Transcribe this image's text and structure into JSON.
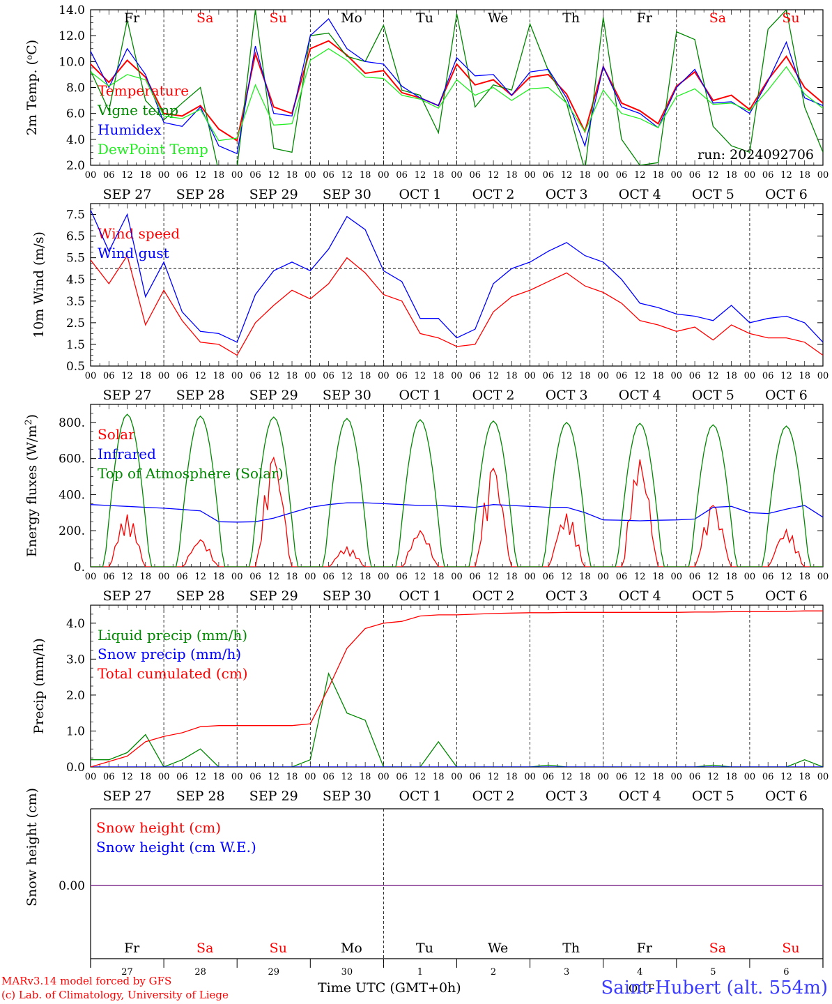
{
  "footer": {
    "model_line": "MARv3.14 model forced by GFS",
    "lab_line": "(c) Lab. of Climatology, University of Liege",
    "time_axis_label": "Time UTC (GMT+0h)",
    "station": "Saint-Hubert (alt. 554m)",
    "month_label": "OCT"
  },
  "colors": {
    "red": "#ff0000",
    "green": "#008800",
    "blue": "#0000ff",
    "lightgreen": "#22ee22",
    "weekend": "#ff0000",
    "weekday": "#000000",
    "snow_line": "#7b2a8a"
  },
  "hour_ticks": [
    "00",
    "06",
    "12",
    "18"
  ],
  "dates": [
    "SEP 27",
    "SEP 28",
    "SEP 29",
    "SEP 30",
    "OCT  1",
    "OCT  2",
    "OCT  3",
    "OCT  4",
    "OCT  5",
    "OCT  6"
  ],
  "days": [
    {
      "abbr": "Fr",
      "num": "27",
      "weekend": false
    },
    {
      "abbr": "Sa",
      "num": "28",
      "weekend": true
    },
    {
      "abbr": "Su",
      "num": "29",
      "weekend": true
    },
    {
      "abbr": "Mo",
      "num": "30",
      "weekend": false
    },
    {
      "abbr": "Tu",
      "num": "1",
      "weekend": false
    },
    {
      "abbr": "We",
      "num": "2",
      "weekend": false
    },
    {
      "abbr": "Th",
      "num": "3",
      "weekend": false
    },
    {
      "abbr": "Fr",
      "num": "4",
      "weekend": false
    },
    {
      "abbr": "Sa",
      "num": "5",
      "weekend": true
    },
    {
      "abbr": "Su",
      "num": "6",
      "weekend": true
    }
  ],
  "chart_data": [
    {
      "type": "line",
      "ylabel": "2m Temp. (°C)",
      "ylim": [
        2.0,
        14.0
      ],
      "yticks": [
        "2.0",
        "4.0",
        "6.0",
        "8.0",
        "10.0",
        "12.0",
        "14.0"
      ],
      "annotation": "run: 2024092706",
      "x_hours": [
        0,
        6,
        12,
        18,
        24,
        30,
        36,
        42,
        48,
        54,
        60,
        66,
        72,
        78,
        84,
        90,
        96,
        102,
        108,
        114,
        120,
        126,
        132,
        138,
        144,
        150,
        156,
        162,
        168,
        174,
        180,
        186,
        192,
        198,
        204,
        210,
        216,
        222,
        228,
        234,
        240
      ],
      "series": [
        {
          "name": "Temperature",
          "color": "red",
          "values": [
            9.8,
            8.4,
            10.1,
            8.8,
            6.0,
            5.8,
            6.6,
            4.8,
            3.9,
            10.6,
            6.5,
            6.0,
            11.0,
            11.6,
            10.5,
            9.1,
            9.3,
            7.6,
            7.2,
            6.6,
            9.8,
            8.2,
            8.6,
            7.4,
            8.8,
            9.0,
            7.5,
            4.6,
            9.6,
            6.8,
            6.2,
            5.2,
            8.1,
            9.2,
            7.0,
            7.4,
            6.3,
            8.6,
            10.4,
            8.0,
            6.8
          ]
        },
        {
          "name": "Vigne temp",
          "color": "green",
          "values": [
            9.3,
            6.2,
            13.2,
            7.0,
            5.5,
            6.8,
            8.0,
            1.5,
            1.8,
            14.0,
            3.3,
            3.0,
            12.0,
            12.2,
            10.4,
            10.0,
            12.8,
            7.8,
            7.4,
            4.5,
            13.7,
            6.5,
            8.2,
            7.8,
            12.9,
            9.3,
            6.8,
            1.6,
            13.4,
            4.0,
            2.0,
            2.2,
            12.3,
            11.7,
            5.0,
            3.5,
            3.0,
            12.5,
            14.0,
            6.5,
            3.0
          ]
        },
        {
          "name": "Humidex",
          "color": "blue",
          "values": [
            10.8,
            8.0,
            11.0,
            9.0,
            5.3,
            5.0,
            6.5,
            3.5,
            2.9,
            11.2,
            6.0,
            5.8,
            12.0,
            13.3,
            11.0,
            10.0,
            9.8,
            8.1,
            7.2,
            6.6,
            10.3,
            8.9,
            9.0,
            7.4,
            9.2,
            9.4,
            7.2,
            3.5,
            9.6,
            6.5,
            6.0,
            4.9,
            8.0,
            9.4,
            6.8,
            6.9,
            6.0,
            8.5,
            11.5,
            7.2,
            6.6
          ]
        },
        {
          "name": "DewPoint Temp",
          "color": "lightgreen",
          "values": [
            9.2,
            8.1,
            9.0,
            8.6,
            5.8,
            5.6,
            6.3,
            3.9,
            4.1,
            8.2,
            5.1,
            5.2,
            10.1,
            11.0,
            10.1,
            8.8,
            8.7,
            7.4,
            7.1,
            6.4,
            8.6,
            7.4,
            8.0,
            7.0,
            7.9,
            8.0,
            6.8,
            4.6,
            7.8,
            6.0,
            5.6,
            4.9,
            7.3,
            7.9,
            6.7,
            6.8,
            6.2,
            7.8,
            9.6,
            7.5,
            6.4
          ]
        }
      ]
    },
    {
      "type": "line",
      "ylabel": "10m Wind (m/s)",
      "ylim": [
        0.5,
        8.0
      ],
      "yticks": [
        "0.5",
        "1.5",
        "2.5",
        "3.5",
        "4.5",
        "5.5",
        "6.5",
        "7.5"
      ],
      "reference_line": 5.0,
      "x_hours": [
        0,
        6,
        12,
        18,
        24,
        30,
        36,
        42,
        48,
        54,
        60,
        66,
        72,
        78,
        84,
        90,
        96,
        102,
        108,
        114,
        120,
        126,
        132,
        138,
        144,
        150,
        156,
        162,
        168,
        174,
        180,
        186,
        192,
        198,
        204,
        210,
        216,
        222,
        228,
        234,
        240
      ],
      "series": [
        {
          "name": "Wind speed",
          "color": "red",
          "values": [
            5.4,
            4.3,
            5.6,
            2.4,
            4.0,
            2.6,
            1.6,
            1.5,
            1.0,
            2.5,
            3.3,
            4.0,
            3.6,
            4.3,
            5.5,
            4.8,
            3.8,
            3.5,
            2.0,
            1.8,
            1.4,
            1.5,
            3.0,
            3.7,
            4.0,
            4.4,
            4.8,
            4.2,
            3.9,
            3.4,
            2.6,
            2.4,
            2.1,
            2.3,
            1.7,
            2.4,
            2.0,
            1.8,
            1.8,
            1.6,
            1.0
          ]
        },
        {
          "name": "Wind gust",
          "color": "blue",
          "values": [
            7.7,
            5.8,
            7.5,
            3.7,
            5.3,
            3.0,
            2.1,
            2.0,
            1.6,
            3.8,
            4.9,
            5.3,
            4.9,
            5.9,
            7.4,
            6.8,
            4.9,
            4.4,
            2.7,
            2.7,
            1.8,
            2.2,
            4.3,
            5.0,
            5.3,
            5.8,
            6.2,
            5.6,
            5.3,
            4.5,
            3.4,
            3.2,
            2.9,
            2.8,
            2.6,
            3.3,
            2.5,
            2.7,
            2.8,
            2.5,
            1.6
          ]
        }
      ]
    },
    {
      "type": "line",
      "ylabel": "Energy fluxes (W/m²)",
      "ylim": [
        0,
        900
      ],
      "yticks": [
        "0.",
        "200.",
        "400.",
        "600.",
        "800."
      ],
      "series": [
        {
          "name": "Solar",
          "color": "red",
          "peaks": [
            {
              "day": 0,
              "peak": 290
            },
            {
              "day": 1,
              "peak": 150
            },
            {
              "day": 2,
              "peak": 605
            },
            {
              "day": 3,
              "peak": 110
            },
            {
              "day": 4,
              "peak": 200
            },
            {
              "day": 5,
              "peak": 545
            },
            {
              "day": 6,
              "peak": 295
            },
            {
              "day": 7,
              "peak": 595
            },
            {
              "day": 8,
              "peak": 340
            },
            {
              "day": 9,
              "peak": 205
            }
          ]
        },
        {
          "name": "Infrared",
          "color": "blue",
          "values": [
            345,
            340,
            335,
            330,
            325,
            318,
            310,
            250,
            248,
            250,
            270,
            300,
            330,
            345,
            355,
            355,
            350,
            345,
            340,
            340,
            335,
            330,
            345,
            340,
            335,
            330,
            330,
            300,
            260,
            258,
            255,
            258,
            260,
            265,
            330,
            335,
            300,
            295,
            320,
            340,
            275
          ]
        },
        {
          "name": "Top of Atmosphere (Solar)",
          "color": "green",
          "peaks": [
            {
              "day": 0,
              "peak": 845
            },
            {
              "day": 1,
              "peak": 835
            },
            {
              "day": 2,
              "peak": 830
            },
            {
              "day": 3,
              "peak": 822
            },
            {
              "day": 4,
              "peak": 815
            },
            {
              "day": 5,
              "peak": 808
            },
            {
              "day": 6,
              "peak": 800
            },
            {
              "day": 7,
              "peak": 795
            },
            {
              "day": 8,
              "peak": 787
            },
            {
              "day": 9,
              "peak": 780
            }
          ]
        }
      ]
    },
    {
      "type": "line",
      "ylabel": "Precip (mm/h)",
      "ylim": [
        0,
        4.5
      ],
      "yticks": [
        "0.0",
        "1.0",
        "2.0",
        "3.0",
        "4.0"
      ],
      "x_hours": [
        0,
        6,
        12,
        18,
        24,
        30,
        36,
        42,
        48,
        54,
        60,
        66,
        72,
        78,
        84,
        90,
        96,
        102,
        108,
        114,
        120,
        126,
        132,
        138,
        144,
        150,
        156,
        162,
        168,
        174,
        180,
        186,
        192,
        198,
        204,
        210,
        216,
        222,
        228,
        234,
        240
      ],
      "series": [
        {
          "name": "Liquid precip (mm/h)",
          "color": "green",
          "values": [
            0.2,
            0.2,
            0.4,
            0.9,
            0.0,
            0.2,
            0.5,
            0.0,
            0.0,
            0.0,
            0.0,
            0.0,
            0.2,
            2.6,
            1.5,
            1.3,
            0.0,
            0.0,
            0.0,
            0.7,
            0.0,
            0.0,
            0.0,
            0.0,
            0.0,
            0.05,
            0.0,
            0.0,
            0.0,
            0.0,
            0.0,
            0.0,
            0.0,
            0.0,
            0.05,
            0.0,
            0.0,
            0.0,
            0.0,
            0.2,
            0.0
          ]
        },
        {
          "name": "Snow precip (mm/h)",
          "color": "blue",
          "values": [
            0,
            0,
            0,
            0,
            0,
            0,
            0,
            0,
            0,
            0,
            0,
            0,
            0,
            0,
            0,
            0,
            0,
            0,
            0,
            0,
            0,
            0,
            0,
            0,
            0,
            0,
            0,
            0,
            0,
            0,
            0,
            0,
            0,
            0,
            0,
            0,
            0,
            0,
            0,
            0,
            0
          ]
        },
        {
          "name": "Total cumulated (cm)",
          "color": "red",
          "values": [
            0.0,
            0.15,
            0.3,
            0.7,
            0.85,
            0.95,
            1.12,
            1.15,
            1.15,
            1.15,
            1.15,
            1.15,
            1.2,
            2.2,
            3.3,
            3.85,
            4.0,
            4.05,
            4.2,
            4.23,
            4.23,
            4.25,
            4.27,
            4.28,
            4.29,
            4.29,
            4.3,
            4.3,
            4.3,
            4.3,
            4.3,
            4.3,
            4.3,
            4.31,
            4.31,
            4.32,
            4.32,
            4.32,
            4.33,
            4.34,
            4.34
          ]
        }
      ]
    },
    {
      "type": "line",
      "ylabel": "Snow height (cm)",
      "yticks": [
        "0.00"
      ],
      "series": [
        {
          "name": "Snow height (cm)",
          "color": "red",
          "values": [
            0,
            0
          ]
        },
        {
          "name": "Snow height (cm W.E.)",
          "color": "blue",
          "values": [
            0,
            0
          ]
        }
      ]
    }
  ]
}
